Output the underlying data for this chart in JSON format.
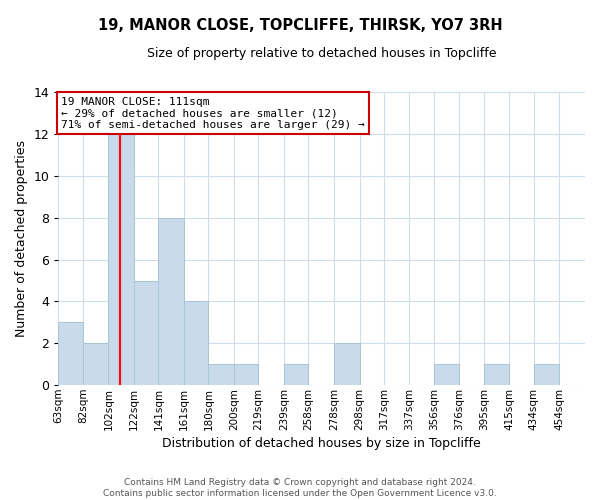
{
  "title": "19, MANOR CLOSE, TOPCLIFFE, THIRSK, YO7 3RH",
  "subtitle": "Size of property relative to detached houses in Topcliffe",
  "xlabel": "Distribution of detached houses by size in Topcliffe",
  "ylabel": "Number of detached properties",
  "bin_labels": [
    "63sqm",
    "82sqm",
    "102sqm",
    "122sqm",
    "141sqm",
    "161sqm",
    "180sqm",
    "200sqm",
    "219sqm",
    "239sqm",
    "258sqm",
    "278sqm",
    "298sqm",
    "317sqm",
    "337sqm",
    "356sqm",
    "376sqm",
    "395sqm",
    "415sqm",
    "434sqm",
    "454sqm"
  ],
  "bin_edges": [
    63,
    82,
    102,
    122,
    141,
    161,
    180,
    200,
    219,
    239,
    258,
    278,
    298,
    317,
    337,
    356,
    376,
    395,
    415,
    434,
    454
  ],
  "bar_heights": [
    3,
    2,
    12,
    5,
    8,
    4,
    1,
    1,
    0,
    1,
    0,
    2,
    0,
    0,
    0,
    1,
    0,
    1,
    0,
    1
  ],
  "bar_color": "#c9daea",
  "bar_edge_color": "#a8c4d8",
  "red_line_x": 111,
  "ylim": [
    0,
    14
  ],
  "yticks": [
    0,
    2,
    4,
    6,
    8,
    10,
    12,
    14
  ],
  "annotation_title": "19 MANOR CLOSE: 111sqm",
  "annotation_line1": "← 29% of detached houses are smaller (12)",
  "annotation_line2": "71% of semi-detached houses are larger (29) →",
  "annotation_box_color": "#ffffff",
  "annotation_box_edge_color": "#cc0000",
  "footer_line1": "Contains HM Land Registry data © Crown copyright and database right 2024.",
  "footer_line2": "Contains public sector information licensed under the Open Government Licence v3.0.",
  "background_color": "#ffffff",
  "grid_color": "#d0dce8"
}
